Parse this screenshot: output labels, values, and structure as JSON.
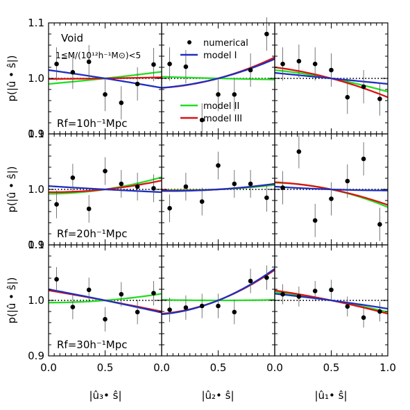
{
  "figure": {
    "row_ylabel": "p(|û • ŝ|)",
    "col_xlabels": [
      "|û₃• ŝ|",
      "|û₂• ŝ|",
      "|û₁• ŝ|"
    ],
    "panel_title": "Void",
    "mass_range": "1≦M/(10¹²h⁻¹M⊙)<5",
    "row_labels": [
      "Rf=10h⁻¹Mpc",
      "Rf=20h⁻¹Mpc",
      "Rf=30h⁻¹Mpc"
    ],
    "legend": [
      {
        "label": "numerical",
        "kind": "point",
        "color": "#000000"
      },
      {
        "label": "model I",
        "kind": "line",
        "color": "#1f2fbf"
      },
      {
        "label": "model II",
        "kind": "line",
        "color": "#22dd22"
      },
      {
        "label": "model III",
        "kind": "line",
        "color": "#dd1111"
      }
    ],
    "colors": {
      "model_I": "#1f2fbf",
      "model_II": "#22dd22",
      "model_III": "#dd1111",
      "points": "#000000",
      "reference": "#000000"
    }
  },
  "chart_data": {
    "type": "scatter",
    "grid": "3x3",
    "xlim": [
      0.0,
      1.0
    ],
    "ylim": [
      0.9,
      1.1
    ],
    "xticks": [
      "0.0",
      "0.5",
      "1.0"
    ],
    "yticks": [
      "0.9",
      "1.0",
      "1.1"
    ],
    "x": [
      0.071,
      0.214,
      0.357,
      0.5,
      0.643,
      0.786,
      0.929
    ],
    "panels": [
      {
        "row": 0,
        "col": 0,
        "points": [
          1.026,
          1.011,
          1.03,
          0.971,
          0.956,
          0.99,
          1.025
        ],
        "errors": [
          0.03,
          0.03,
          0.03,
          0.03,
          0.03,
          0.03,
          0.03
        ],
        "model_I": [
          1.015,
          0.983
        ],
        "model_II": [
          0.99,
          1.012
        ],
        "model_III": [
          0.999,
          1.002
        ]
      },
      {
        "row": 0,
        "col": 1,
        "points": [
          1.026,
          1.021,
          0.925,
          0.971,
          0.971,
          1.015,
          1.08
        ],
        "errors": [
          0.03,
          0.03,
          0.03,
          0.03,
          0.03,
          0.03,
          0.03
        ],
        "model_I": [
          0.983,
          1.035
        ],
        "model_II": [
          1.003,
          0.998
        ],
        "model_III": [
          0.983,
          1.038
        ]
      },
      {
        "row": 0,
        "col": 2,
        "points": [
          1.026,
          1.031,
          1.026,
          1.015,
          0.966,
          0.985,
          0.963
        ],
        "errors": [
          0.03,
          0.03,
          0.03,
          0.03,
          0.03,
          0.03,
          0.03
        ],
        "model_I": [
          1.01,
          0.99
        ],
        "model_II": [
          1.015,
          0.976
        ],
        "model_III": [
          1.02,
          0.966
        ]
      },
      {
        "row": 1,
        "col": 0,
        "points": [
          0.973,
          1.021,
          0.965,
          1.033,
          1.01,
          1.005,
          1.002
        ],
        "errors": [
          0.025,
          0.025,
          0.025,
          0.025,
          0.025,
          0.025,
          0.025
        ],
        "model_I": [
          1.006,
          0.995
        ],
        "model_II": [
          0.992,
          1.022
        ],
        "model_III": [
          0.995,
          1.016
        ]
      },
      {
        "row": 1,
        "col": 1,
        "points": [
          0.966,
          1.005,
          0.978,
          1.043,
          1.01,
          1.01,
          0.985
        ],
        "errors": [
          0.025,
          0.025,
          0.025,
          0.025,
          0.025,
          0.025,
          0.025
        ],
        "model_I": [
          0.997,
          1.01
        ],
        "model_II": [
          0.999,
          1.008
        ],
        "model_III": [
          0.998,
          1.01
        ]
      },
      {
        "row": 1,
        "col": 2,
        "points": [
          1.003,
          1.068,
          0.944,
          0.983,
          1.015,
          1.055,
          0.937
        ],
        "errors": [
          0.03,
          0.03,
          0.03,
          0.03,
          0.03,
          0.03,
          0.03
        ],
        "model_I": [
          1.005,
          0.998
        ],
        "model_II": [
          1.012,
          0.968
        ],
        "model_III": [
          1.013,
          0.972
        ]
      },
      {
        "row": 2,
        "col": 0,
        "points": [
          1.038,
          0.988,
          1.019,
          0.966,
          1.011,
          0.979,
          1.013
        ],
        "errors": [
          0.022,
          0.022,
          0.022,
          0.022,
          0.022,
          0.022,
          0.022
        ],
        "model_I": [
          1.02,
          0.978
        ],
        "model_II": [
          0.996,
          1.012
        ],
        "model_III": [
          1.018,
          0.98
        ]
      },
      {
        "row": 2,
        "col": 1,
        "points": [
          0.983,
          0.987,
          0.99,
          0.99,
          0.979,
          1.035,
          1.041
        ],
        "errors": [
          0.022,
          0.022,
          0.022,
          0.022,
          0.022,
          0.022,
          0.022
        ],
        "model_I": [
          0.975,
          1.057
        ],
        "model_II": [
          1.001,
          1.001
        ],
        "model_III": [
          0.976,
          1.055
        ]
      },
      {
        "row": 2,
        "col": 2,
        "points": [
          1.011,
          1.007,
          1.017,
          1.019,
          0.989,
          0.969,
          0.98
        ],
        "errors": [
          0.018,
          0.018,
          0.018,
          0.018,
          0.018,
          0.018,
          0.018
        ],
        "model_I": [
          1.012,
          0.985
        ],
        "model_II": [
          1.015,
          0.979
        ],
        "model_III": [
          1.018,
          0.976
        ]
      }
    ]
  }
}
